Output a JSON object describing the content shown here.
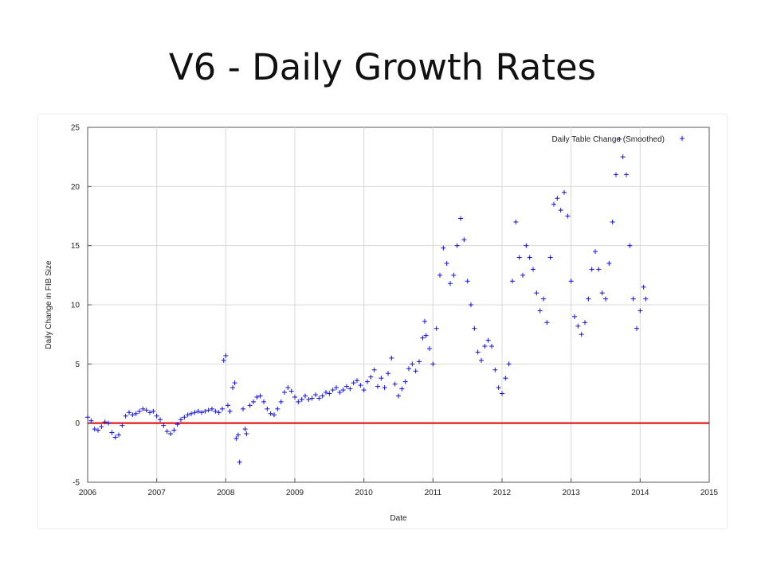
{
  "slide": {
    "title": "V6 - Daily Growth Rates"
  },
  "chart_data": {
    "type": "scatter",
    "title": "",
    "xlabel": "Date",
    "ylabel": "Daily Change in FIB Size",
    "xlim": [
      2006,
      2015
    ],
    "ylim": [
      -5,
      25
    ],
    "x_ticks": [
      "2006",
      "2007",
      "2008",
      "2009",
      "2010",
      "2011",
      "2012",
      "2013",
      "2014",
      "2015"
    ],
    "y_ticks": [
      "-5",
      "0",
      "5",
      "10",
      "15",
      "20",
      "25"
    ],
    "grid": true,
    "legend": {
      "position": "top-right"
    },
    "colors": {
      "series": "#1010e0",
      "baseline": "#e00000"
    },
    "reference_line": {
      "y": 0,
      "color": "#e00000"
    },
    "series": [
      {
        "name": "Daily Table Change (Smoothed)",
        "marker": "plus",
        "points": [
          [
            2006.0,
            0.5
          ],
          [
            2006.05,
            0.2
          ],
          [
            2006.1,
            -0.5
          ],
          [
            2006.15,
            -0.6
          ],
          [
            2006.2,
            -0.3
          ],
          [
            2006.25,
            0.1
          ],
          [
            2006.3,
            0.0
          ],
          [
            2006.35,
            -0.8
          ],
          [
            2006.4,
            -1.2
          ],
          [
            2006.45,
            -1.0
          ],
          [
            2006.5,
            -0.2
          ],
          [
            2006.55,
            0.6
          ],
          [
            2006.6,
            0.9
          ],
          [
            2006.65,
            0.7
          ],
          [
            2006.7,
            0.8
          ],
          [
            2006.75,
            1.0
          ],
          [
            2006.8,
            1.2
          ],
          [
            2006.85,
            1.1
          ],
          [
            2006.9,
            0.9
          ],
          [
            2006.95,
            1.0
          ],
          [
            2007.0,
            0.6
          ],
          [
            2007.05,
            0.3
          ],
          [
            2007.1,
            -0.2
          ],
          [
            2007.15,
            -0.7
          ],
          [
            2007.2,
            -0.9
          ],
          [
            2007.25,
            -0.6
          ],
          [
            2007.3,
            -0.1
          ],
          [
            2007.35,
            0.3
          ],
          [
            2007.4,
            0.5
          ],
          [
            2007.45,
            0.7
          ],
          [
            2007.5,
            0.8
          ],
          [
            2007.55,
            0.9
          ],
          [
            2007.6,
            1.0
          ],
          [
            2007.65,
            0.9
          ],
          [
            2007.7,
            1.0
          ],
          [
            2007.75,
            1.1
          ],
          [
            2007.8,
            1.2
          ],
          [
            2007.85,
            1.0
          ],
          [
            2007.9,
            0.9
          ],
          [
            2007.95,
            1.2
          ],
          [
            2007.97,
            5.3
          ],
          [
            2008.0,
            5.7
          ],
          [
            2008.03,
            1.5
          ],
          [
            2008.06,
            1.0
          ],
          [
            2008.1,
            3.0
          ],
          [
            2008.13,
            3.4
          ],
          [
            2008.15,
            -1.3
          ],
          [
            2008.18,
            -1.0
          ],
          [
            2008.2,
            -3.3
          ],
          [
            2008.25,
            1.2
          ],
          [
            2008.28,
            -0.5
          ],
          [
            2008.3,
            -0.9
          ],
          [
            2008.35,
            1.5
          ],
          [
            2008.4,
            1.8
          ],
          [
            2008.45,
            2.2
          ],
          [
            2008.5,
            2.3
          ],
          [
            2008.55,
            1.8
          ],
          [
            2008.6,
            1.2
          ],
          [
            2008.65,
            0.8
          ],
          [
            2008.7,
            0.7
          ],
          [
            2008.75,
            1.2
          ],
          [
            2008.8,
            1.8
          ],
          [
            2008.85,
            2.6
          ],
          [
            2008.9,
            3.0
          ],
          [
            2008.95,
            2.7
          ],
          [
            2009.0,
            2.2
          ],
          [
            2009.05,
            1.8
          ],
          [
            2009.1,
            2.0
          ],
          [
            2009.15,
            2.3
          ],
          [
            2009.2,
            2.0
          ],
          [
            2009.25,
            2.1
          ],
          [
            2009.3,
            2.4
          ],
          [
            2009.35,
            2.1
          ],
          [
            2009.4,
            2.3
          ],
          [
            2009.45,
            2.6
          ],
          [
            2009.5,
            2.5
          ],
          [
            2009.55,
            2.8
          ],
          [
            2009.6,
            3.0
          ],
          [
            2009.65,
            2.6
          ],
          [
            2009.7,
            2.8
          ],
          [
            2009.75,
            3.1
          ],
          [
            2009.8,
            2.9
          ],
          [
            2009.85,
            3.4
          ],
          [
            2009.9,
            3.6
          ],
          [
            2009.95,
            3.2
          ],
          [
            2010.0,
            2.8
          ],
          [
            2010.05,
            3.5
          ],
          [
            2010.1,
            3.9
          ],
          [
            2010.15,
            4.5
          ],
          [
            2010.2,
            3.1
          ],
          [
            2010.25,
            3.8
          ],
          [
            2010.3,
            3.0
          ],
          [
            2010.35,
            4.2
          ],
          [
            2010.4,
            5.5
          ],
          [
            2010.45,
            3.3
          ],
          [
            2010.5,
            2.3
          ],
          [
            2010.55,
            2.9
          ],
          [
            2010.6,
            3.5
          ],
          [
            2010.65,
            4.6
          ],
          [
            2010.7,
            5.0
          ],
          [
            2010.75,
            4.4
          ],
          [
            2010.8,
            5.2
          ],
          [
            2010.85,
            7.2
          ],
          [
            2010.88,
            8.6
          ],
          [
            2010.9,
            7.4
          ],
          [
            2010.95,
            6.3
          ],
          [
            2011.0,
            5.0
          ],
          [
            2011.05,
            8.0
          ],
          [
            2011.1,
            12.5
          ],
          [
            2011.15,
            14.8
          ],
          [
            2011.2,
            13.5
          ],
          [
            2011.25,
            11.8
          ],
          [
            2011.3,
            12.5
          ],
          [
            2011.35,
            15.0
          ],
          [
            2011.4,
            17.3
          ],
          [
            2011.45,
            15.5
          ],
          [
            2011.5,
            12.0
          ],
          [
            2011.55,
            10.0
          ],
          [
            2011.6,
            8.0
          ],
          [
            2011.65,
            6.0
          ],
          [
            2011.7,
            5.3
          ],
          [
            2011.75,
            6.5
          ],
          [
            2011.8,
            7.0
          ],
          [
            2011.85,
            6.5
          ],
          [
            2011.9,
            4.5
          ],
          [
            2011.95,
            3.0
          ],
          [
            2012.0,
            2.5
          ],
          [
            2012.05,
            3.8
          ],
          [
            2012.1,
            5.0
          ],
          [
            2012.15,
            12.0
          ],
          [
            2012.2,
            17.0
          ],
          [
            2012.25,
            14.0
          ],
          [
            2012.3,
            12.5
          ],
          [
            2012.35,
            15.0
          ],
          [
            2012.4,
            14.0
          ],
          [
            2012.45,
            13.0
          ],
          [
            2012.5,
            11.0
          ],
          [
            2012.55,
            9.5
          ],
          [
            2012.6,
            10.5
          ],
          [
            2012.65,
            8.5
          ],
          [
            2012.7,
            14.0
          ],
          [
            2012.75,
            18.5
          ],
          [
            2012.8,
            19.0
          ],
          [
            2012.85,
            18.0
          ],
          [
            2012.9,
            19.5
          ],
          [
            2012.95,
            17.5
          ],
          [
            2013.0,
            12.0
          ],
          [
            2013.05,
            9.0
          ],
          [
            2013.1,
            8.2
          ],
          [
            2013.15,
            7.5
          ],
          [
            2013.2,
            8.5
          ],
          [
            2013.25,
            10.5
          ],
          [
            2013.3,
            13.0
          ],
          [
            2013.35,
            14.5
          ],
          [
            2013.4,
            13.0
          ],
          [
            2013.45,
            11.0
          ],
          [
            2013.5,
            10.5
          ],
          [
            2013.55,
            13.5
          ],
          [
            2013.6,
            17.0
          ],
          [
            2013.65,
            21.0
          ],
          [
            2013.7,
            24.0
          ],
          [
            2013.75,
            22.5
          ],
          [
            2013.8,
            21.0
          ],
          [
            2013.85,
            15.0
          ],
          [
            2013.9,
            10.5
          ],
          [
            2013.95,
            8.0
          ],
          [
            2014.0,
            9.5
          ],
          [
            2014.05,
            11.5
          ],
          [
            2014.08,
            10.5
          ]
        ]
      }
    ]
  }
}
